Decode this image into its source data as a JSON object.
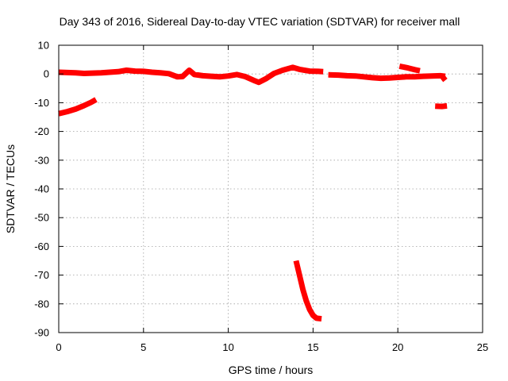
{
  "chart_data": {
    "type": "line",
    "title": "Day 343 of 2016, Sidereal Day-to-day VTEC variation (SDTVAR) for receiver mall",
    "xlabel": "GPS time / hours",
    "ylabel": "SDTVAR / TECUs",
    "xlim": [
      0,
      25
    ],
    "ylim": [
      -90,
      10
    ],
    "xticks": [
      0,
      5,
      10,
      15,
      20,
      25
    ],
    "yticks": [
      10,
      0,
      -10,
      -20,
      -30,
      -40,
      -50,
      -60,
      -70,
      -80,
      -90
    ],
    "grid": true,
    "series": [
      {
        "name": "main",
        "color": "#ff0000",
        "points": [
          [
            0.0,
            0.6
          ],
          [
            0.5,
            0.5
          ],
          [
            1.0,
            0.4
          ],
          [
            1.5,
            0.2
          ],
          [
            2.0,
            0.3
          ],
          [
            2.5,
            0.4
          ],
          [
            3.0,
            0.6
          ],
          [
            3.5,
            0.8
          ],
          [
            4.0,
            1.3
          ],
          [
            4.5,
            1.0
          ],
          [
            5.0,
            0.9
          ],
          [
            5.5,
            0.6
          ],
          [
            6.0,
            0.4
          ],
          [
            6.5,
            0.1
          ],
          [
            7.0,
            -1.0
          ],
          [
            7.3,
            -0.9
          ],
          [
            7.7,
            1.3
          ],
          [
            8.0,
            -0.2
          ],
          [
            8.5,
            -0.6
          ],
          [
            9.0,
            -0.8
          ],
          [
            9.5,
            -1.0
          ],
          [
            10.0,
            -0.7
          ],
          [
            10.5,
            -0.2
          ],
          [
            11.0,
            -0.9
          ],
          [
            11.5,
            -2.2
          ],
          [
            11.8,
            -2.9
          ],
          [
            12.2,
            -1.7
          ],
          [
            12.7,
            0.2
          ],
          [
            13.2,
            1.3
          ],
          [
            13.8,
            2.3
          ],
          [
            14.2,
            1.6
          ],
          [
            14.8,
            1.0
          ],
          [
            15.3,
            0.9
          ],
          [
            15.6,
            0.8
          ]
        ]
      },
      {
        "name": "segment-2",
        "color": "#ff0000",
        "points": [
          [
            15.9,
            -0.3
          ],
          [
            16.5,
            -0.4
          ],
          [
            17.0,
            -0.6
          ],
          [
            17.5,
            -0.7
          ],
          [
            18.0,
            -1.0
          ],
          [
            18.5,
            -1.3
          ],
          [
            19.0,
            -1.5
          ],
          [
            19.5,
            -1.4
          ],
          [
            20.0,
            -1.2
          ],
          [
            20.5,
            -1.0
          ],
          [
            21.0,
            -1.0
          ],
          [
            21.5,
            -0.8
          ],
          [
            22.0,
            -0.7
          ],
          [
            22.5,
            -0.6
          ],
          [
            22.8,
            -0.8
          ]
        ]
      },
      {
        "name": "segment-3",
        "color": "#ff0000",
        "points": [
          [
            20.1,
            2.7
          ],
          [
            20.6,
            2.1
          ],
          [
            21.0,
            1.5
          ],
          [
            21.3,
            1.1
          ]
        ]
      },
      {
        "name": "segment-4",
        "color": "#ff0000",
        "points": [
          [
            22.6,
            -0.5
          ],
          [
            22.7,
            -1.5
          ],
          [
            22.8,
            -2.2
          ]
        ]
      },
      {
        "name": "early-negative",
        "color": "#ff0000",
        "points": [
          [
            0.0,
            -13.8
          ],
          [
            0.5,
            -13.1
          ],
          [
            1.0,
            -12.2
          ],
          [
            1.5,
            -11.0
          ],
          [
            1.9,
            -9.9
          ],
          [
            2.2,
            -8.9
          ]
        ]
      },
      {
        "name": "late-negative",
        "color": "#ff0000",
        "points": [
          [
            22.2,
            -11.2
          ],
          [
            22.6,
            -11.3
          ],
          [
            22.9,
            -11.1
          ]
        ]
      },
      {
        "name": "deep-drop",
        "color": "#ff0000",
        "points": [
          [
            14.0,
            -65.0
          ],
          [
            14.2,
            -70.0
          ],
          [
            14.4,
            -75.0
          ],
          [
            14.6,
            -79.0
          ],
          [
            14.8,
            -82.0
          ],
          [
            15.0,
            -84.0
          ],
          [
            15.2,
            -85.0
          ],
          [
            15.5,
            -85.2
          ]
        ]
      }
    ]
  }
}
